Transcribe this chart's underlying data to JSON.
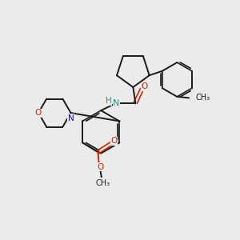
{
  "bg_color": "#ebebeb",
  "bond_color": "#1a1a1a",
  "oxygen_color": "#cc2200",
  "nitrogen_color": "#2200cc",
  "hn_color": "#2a9090",
  "figsize": [
    3.0,
    3.0
  ],
  "dpi": 100,
  "xlim": [
    0,
    10
  ],
  "ylim": [
    0,
    10
  ]
}
